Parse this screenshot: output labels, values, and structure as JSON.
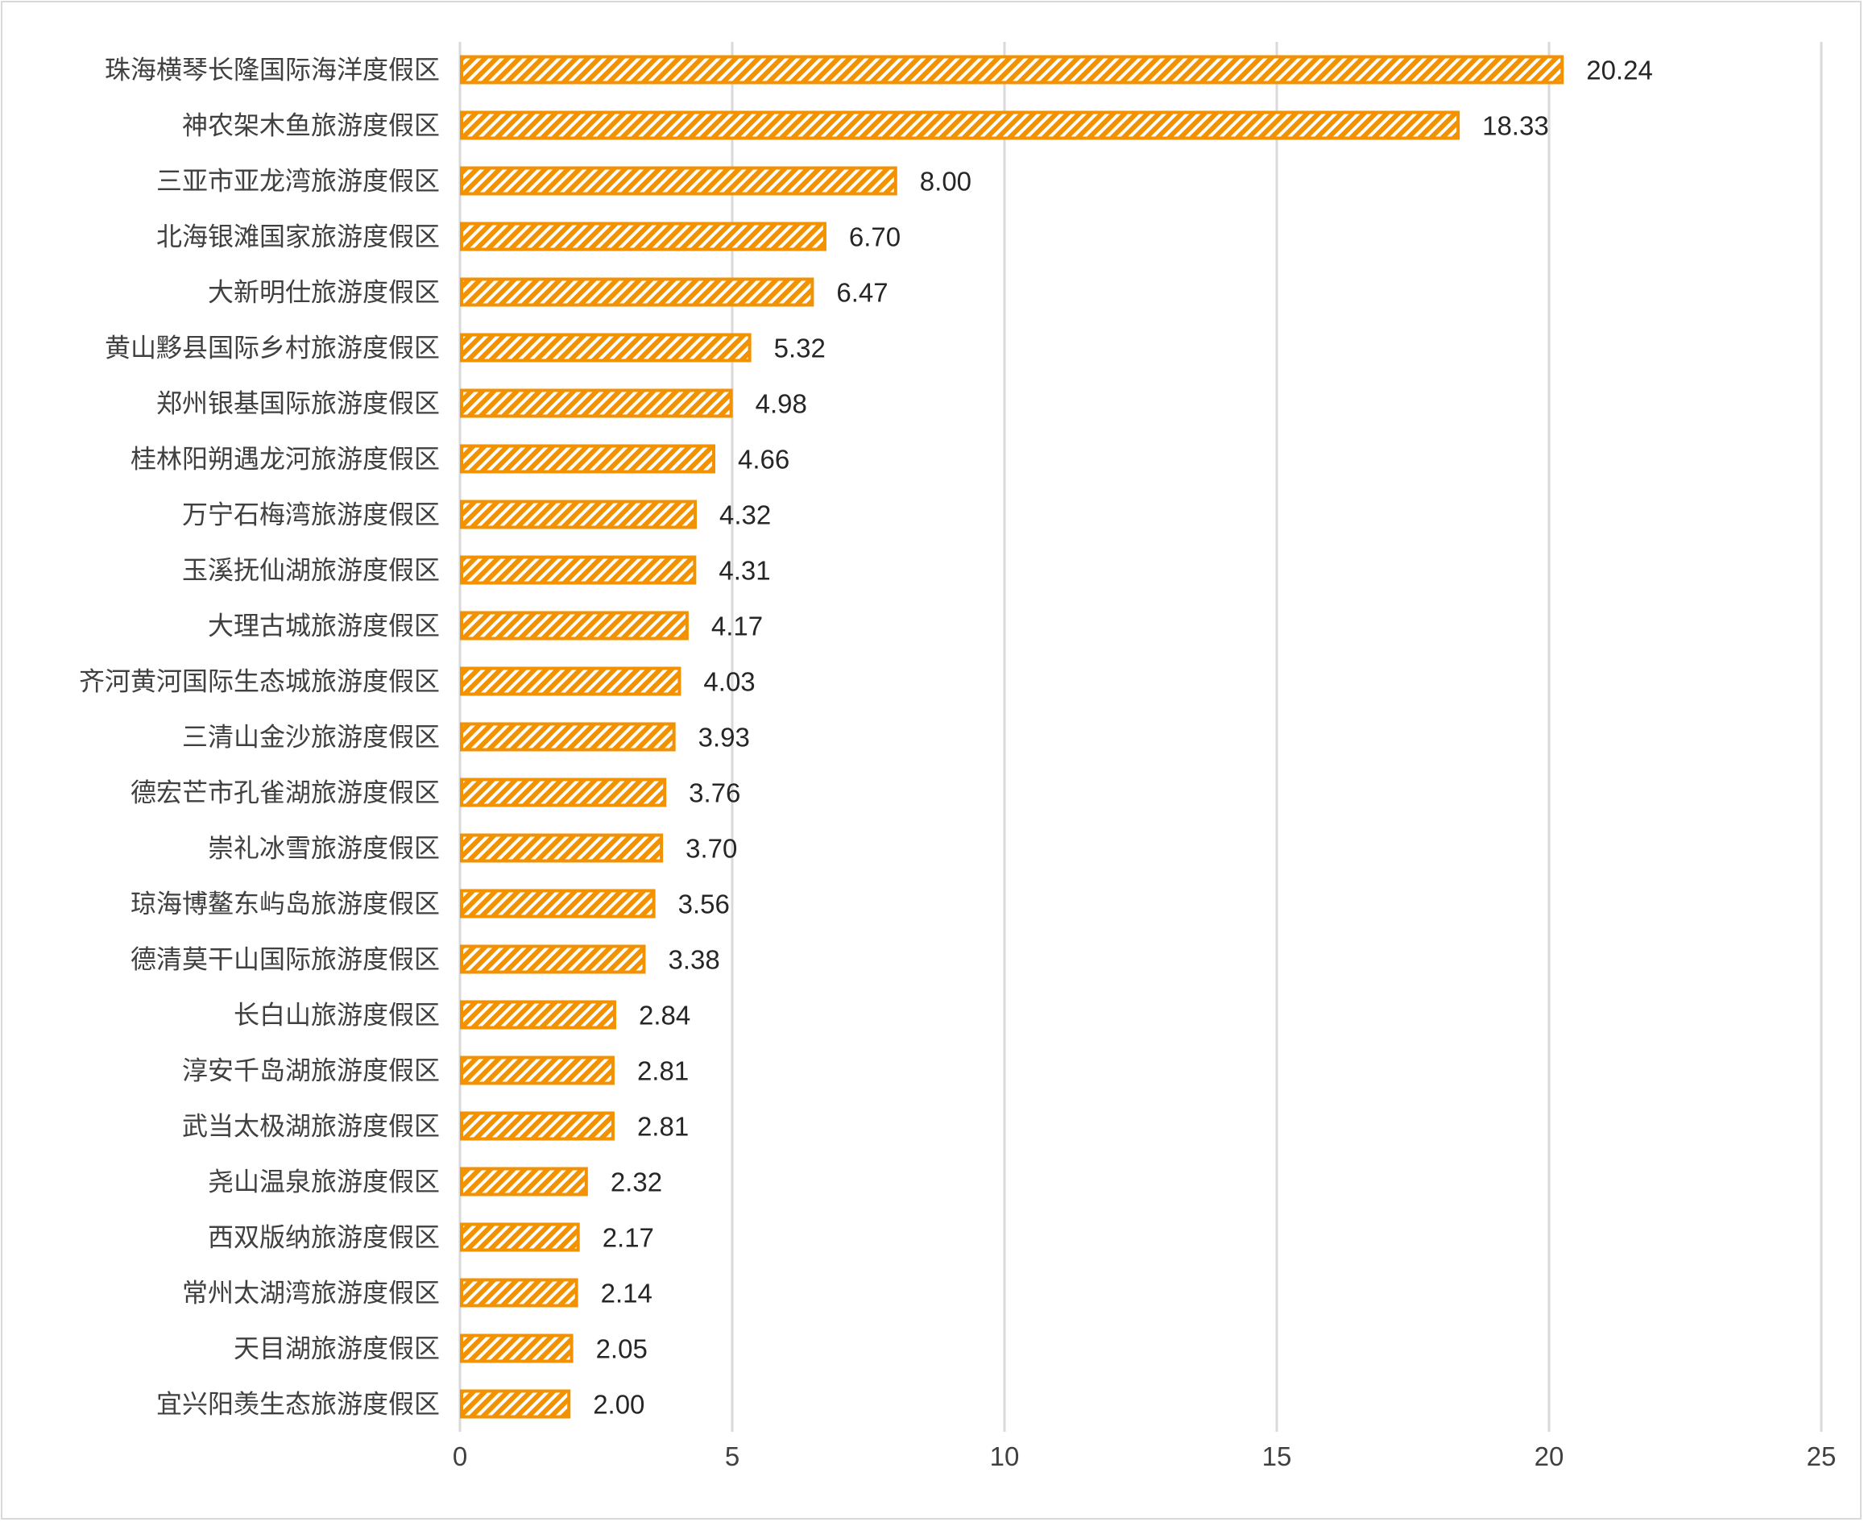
{
  "chart_data": {
    "type": "bar",
    "orientation": "horizontal",
    "title": "",
    "xlabel": "",
    "ylabel": "",
    "xlim": [
      0,
      25
    ],
    "xticks": [
      "0",
      "5",
      "10",
      "15",
      "20",
      "25"
    ],
    "grid": true,
    "bar_color": "#f39200",
    "pattern": "diagonal-hatch",
    "categories": [
      "珠海横琴长隆国际海洋度假区",
      "神农架木鱼旅游度假区",
      "三亚市亚龙湾旅游度假区",
      "北海银滩国家旅游度假区",
      "大新明仕旅游度假区",
      "黄山黟县国际乡村旅游度假区",
      "郑州银基国际旅游度假区",
      "桂林阳朔遇龙河旅游度假区",
      "万宁石梅湾旅游度假区",
      "玉溪抚仙湖旅游度假区",
      "大理古城旅游度假区",
      "齐河黄河国际生态城旅游度假区",
      "三清山金沙旅游度假区",
      "德宏芒市孔雀湖旅游度假区",
      "崇礼冰雪旅游度假区",
      "琼海博鳌东屿岛旅游度假区",
      "德清莫干山国际旅游度假区",
      "长白山旅游度假区",
      "淳安千岛湖旅游度假区",
      "武当太极湖旅游度假区",
      "尧山温泉旅游度假区",
      "西双版纳旅游度假区",
      "常州太湖湾旅游度假区",
      "天目湖旅游度假区",
      "宜兴阳羡生态旅游度假区"
    ],
    "values": [
      20.24,
      18.33,
      8.0,
      6.7,
      6.47,
      5.32,
      4.98,
      4.66,
      4.32,
      4.31,
      4.17,
      4.03,
      3.93,
      3.76,
      3.7,
      3.56,
      3.38,
      2.84,
      2.81,
      2.81,
      2.32,
      2.17,
      2.14,
      2.05,
      2.0
    ],
    "value_labels": [
      "20.24",
      "18.33",
      "8.00",
      "6.70",
      "6.47",
      "5.32",
      "4.98",
      "4.66",
      "4.32",
      "4.31",
      "4.17",
      "4.03",
      "3.93",
      "3.76",
      "3.70",
      "3.56",
      "3.38",
      "2.84",
      "2.81",
      "2.81",
      "2.32",
      "2.17",
      "2.14",
      "2.05",
      "2.00"
    ]
  }
}
